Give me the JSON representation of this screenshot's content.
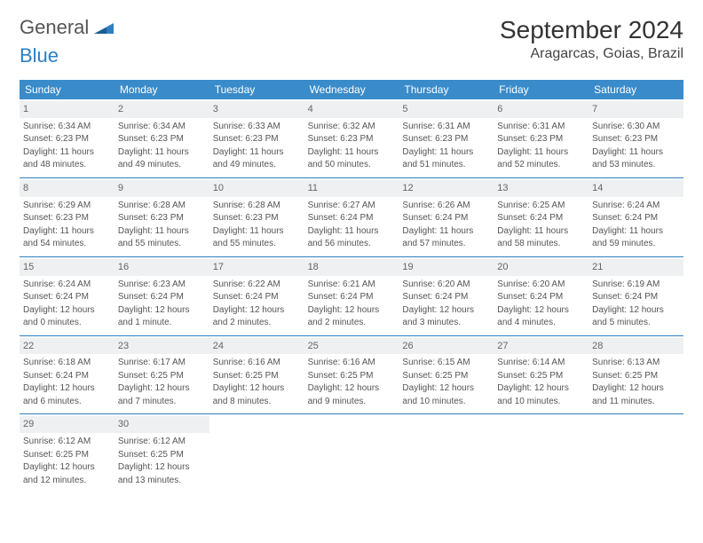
{
  "logo": {
    "part1": "General",
    "part2": "Blue"
  },
  "title": "September 2024",
  "location": "Aragarcas, Goias, Brazil",
  "colors": {
    "header_blue": "#3a8bc9",
    "rule_blue": "#2d7fc1",
    "daynum_bg": "#eef0f2",
    "text": "#555555"
  },
  "weekdays": [
    "Sunday",
    "Monday",
    "Tuesday",
    "Wednesday",
    "Thursday",
    "Friday",
    "Saturday"
  ],
  "weeks": [
    [
      {
        "n": "1",
        "sr": "Sunrise: 6:34 AM",
        "ss": "Sunset: 6:23 PM",
        "d1": "Daylight: 11 hours",
        "d2": "and 48 minutes."
      },
      {
        "n": "2",
        "sr": "Sunrise: 6:34 AM",
        "ss": "Sunset: 6:23 PM",
        "d1": "Daylight: 11 hours",
        "d2": "and 49 minutes."
      },
      {
        "n": "3",
        "sr": "Sunrise: 6:33 AM",
        "ss": "Sunset: 6:23 PM",
        "d1": "Daylight: 11 hours",
        "d2": "and 49 minutes."
      },
      {
        "n": "4",
        "sr": "Sunrise: 6:32 AM",
        "ss": "Sunset: 6:23 PM",
        "d1": "Daylight: 11 hours",
        "d2": "and 50 minutes."
      },
      {
        "n": "5",
        "sr": "Sunrise: 6:31 AM",
        "ss": "Sunset: 6:23 PM",
        "d1": "Daylight: 11 hours",
        "d2": "and 51 minutes."
      },
      {
        "n": "6",
        "sr": "Sunrise: 6:31 AM",
        "ss": "Sunset: 6:23 PM",
        "d1": "Daylight: 11 hours",
        "d2": "and 52 minutes."
      },
      {
        "n": "7",
        "sr": "Sunrise: 6:30 AM",
        "ss": "Sunset: 6:23 PM",
        "d1": "Daylight: 11 hours",
        "d2": "and 53 minutes."
      }
    ],
    [
      {
        "n": "8",
        "sr": "Sunrise: 6:29 AM",
        "ss": "Sunset: 6:23 PM",
        "d1": "Daylight: 11 hours",
        "d2": "and 54 minutes."
      },
      {
        "n": "9",
        "sr": "Sunrise: 6:28 AM",
        "ss": "Sunset: 6:23 PM",
        "d1": "Daylight: 11 hours",
        "d2": "and 55 minutes."
      },
      {
        "n": "10",
        "sr": "Sunrise: 6:28 AM",
        "ss": "Sunset: 6:23 PM",
        "d1": "Daylight: 11 hours",
        "d2": "and 55 minutes."
      },
      {
        "n": "11",
        "sr": "Sunrise: 6:27 AM",
        "ss": "Sunset: 6:24 PM",
        "d1": "Daylight: 11 hours",
        "d2": "and 56 minutes."
      },
      {
        "n": "12",
        "sr": "Sunrise: 6:26 AM",
        "ss": "Sunset: 6:24 PM",
        "d1": "Daylight: 11 hours",
        "d2": "and 57 minutes."
      },
      {
        "n": "13",
        "sr": "Sunrise: 6:25 AM",
        "ss": "Sunset: 6:24 PM",
        "d1": "Daylight: 11 hours",
        "d2": "and 58 minutes."
      },
      {
        "n": "14",
        "sr": "Sunrise: 6:24 AM",
        "ss": "Sunset: 6:24 PM",
        "d1": "Daylight: 11 hours",
        "d2": "and 59 minutes."
      }
    ],
    [
      {
        "n": "15",
        "sr": "Sunrise: 6:24 AM",
        "ss": "Sunset: 6:24 PM",
        "d1": "Daylight: 12 hours",
        "d2": "and 0 minutes."
      },
      {
        "n": "16",
        "sr": "Sunrise: 6:23 AM",
        "ss": "Sunset: 6:24 PM",
        "d1": "Daylight: 12 hours",
        "d2": "and 1 minute."
      },
      {
        "n": "17",
        "sr": "Sunrise: 6:22 AM",
        "ss": "Sunset: 6:24 PM",
        "d1": "Daylight: 12 hours",
        "d2": "and 2 minutes."
      },
      {
        "n": "18",
        "sr": "Sunrise: 6:21 AM",
        "ss": "Sunset: 6:24 PM",
        "d1": "Daylight: 12 hours",
        "d2": "and 2 minutes."
      },
      {
        "n": "19",
        "sr": "Sunrise: 6:20 AM",
        "ss": "Sunset: 6:24 PM",
        "d1": "Daylight: 12 hours",
        "d2": "and 3 minutes."
      },
      {
        "n": "20",
        "sr": "Sunrise: 6:20 AM",
        "ss": "Sunset: 6:24 PM",
        "d1": "Daylight: 12 hours",
        "d2": "and 4 minutes."
      },
      {
        "n": "21",
        "sr": "Sunrise: 6:19 AM",
        "ss": "Sunset: 6:24 PM",
        "d1": "Daylight: 12 hours",
        "d2": "and 5 minutes."
      }
    ],
    [
      {
        "n": "22",
        "sr": "Sunrise: 6:18 AM",
        "ss": "Sunset: 6:24 PM",
        "d1": "Daylight: 12 hours",
        "d2": "and 6 minutes."
      },
      {
        "n": "23",
        "sr": "Sunrise: 6:17 AM",
        "ss": "Sunset: 6:25 PM",
        "d1": "Daylight: 12 hours",
        "d2": "and 7 minutes."
      },
      {
        "n": "24",
        "sr": "Sunrise: 6:16 AM",
        "ss": "Sunset: 6:25 PM",
        "d1": "Daylight: 12 hours",
        "d2": "and 8 minutes."
      },
      {
        "n": "25",
        "sr": "Sunrise: 6:16 AM",
        "ss": "Sunset: 6:25 PM",
        "d1": "Daylight: 12 hours",
        "d2": "and 9 minutes."
      },
      {
        "n": "26",
        "sr": "Sunrise: 6:15 AM",
        "ss": "Sunset: 6:25 PM",
        "d1": "Daylight: 12 hours",
        "d2": "and 10 minutes."
      },
      {
        "n": "27",
        "sr": "Sunrise: 6:14 AM",
        "ss": "Sunset: 6:25 PM",
        "d1": "Daylight: 12 hours",
        "d2": "and 10 minutes."
      },
      {
        "n": "28",
        "sr": "Sunrise: 6:13 AM",
        "ss": "Sunset: 6:25 PM",
        "d1": "Daylight: 12 hours",
        "d2": "and 11 minutes."
      }
    ],
    [
      {
        "n": "29",
        "sr": "Sunrise: 6:12 AM",
        "ss": "Sunset: 6:25 PM",
        "d1": "Daylight: 12 hours",
        "d2": "and 12 minutes."
      },
      {
        "n": "30",
        "sr": "Sunrise: 6:12 AM",
        "ss": "Sunset: 6:25 PM",
        "d1": "Daylight: 12 hours",
        "d2": "and 13 minutes."
      },
      null,
      null,
      null,
      null,
      null
    ]
  ]
}
